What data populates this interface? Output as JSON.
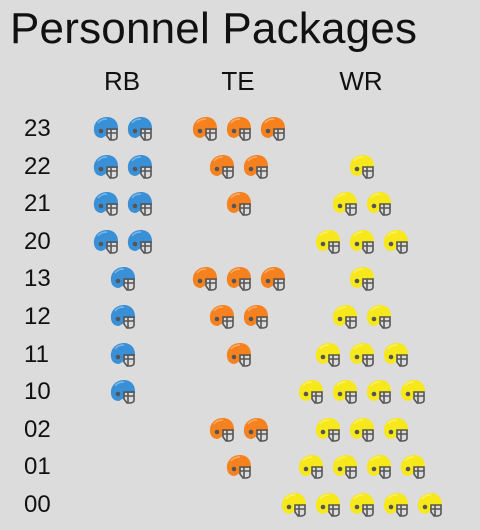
{
  "title": "Personnel Packages",
  "columns": [
    {
      "key": "RB",
      "label": "RB",
      "color": "#3a90d6",
      "icon": "football-helmet-icon"
    },
    {
      "key": "TE",
      "label": "TE",
      "color": "#f5821f",
      "icon": "football-helmet-icon"
    },
    {
      "key": "WR",
      "label": "WR",
      "color": "#f7e81c",
      "icon": "football-helmet-icon"
    }
  ],
  "rows": [
    {
      "label": "23",
      "RB": 2,
      "TE": 3,
      "WR": 0
    },
    {
      "label": "22",
      "RB": 2,
      "TE": 2,
      "WR": 1
    },
    {
      "label": "21",
      "RB": 2,
      "TE": 1,
      "WR": 2
    },
    {
      "label": "20",
      "RB": 2,
      "TE": 0,
      "WR": 3
    },
    {
      "label": "13",
      "RB": 1,
      "TE": 3,
      "WR": 1
    },
    {
      "label": "12",
      "RB": 1,
      "TE": 2,
      "WR": 2
    },
    {
      "label": "11",
      "RB": 1,
      "TE": 1,
      "WR": 3
    },
    {
      "label": "10",
      "RB": 1,
      "TE": 0,
      "WR": 4
    },
    {
      "label": "02",
      "RB": 0,
      "TE": 2,
      "WR": 3
    },
    {
      "label": "01",
      "RB": 0,
      "TE": 1,
      "WR": 4
    },
    {
      "label": "00",
      "RB": 0,
      "TE": 0,
      "WR": 5
    }
  ]
}
